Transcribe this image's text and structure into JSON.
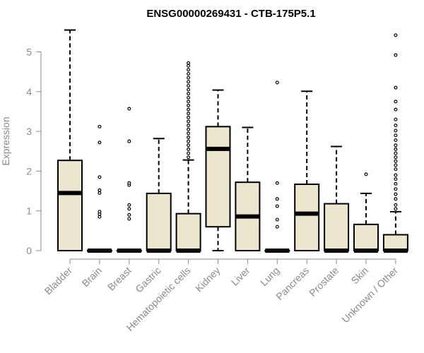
{
  "chart_data": {
    "type": "boxplot",
    "title": "ENSG00000269431 - CTB-175P5.1",
    "xlabel": "",
    "ylabel": "Expression",
    "ylim": [
      0,
      5.6
    ],
    "yticks": [
      0,
      1,
      2,
      3,
      4,
      5
    ],
    "ytick_labels": [
      "0",
      "1",
      "2",
      "3",
      "4",
      "5"
    ],
    "grid": false,
    "colors": {
      "box_fill": "#ede6cf",
      "stroke": "#000000",
      "axis": "#8a8a8a"
    },
    "categories": [
      "Bladder",
      "Brain",
      "Breast",
      "Gastric",
      "Hematopoietic cells",
      "Kidney",
      "Liver",
      "Lung",
      "Pancreas",
      "Prostate",
      "Skin",
      "Unknown / Other"
    ],
    "boxes": [
      {
        "name": "Bladder",
        "min": 0,
        "q1": 0,
        "median": 1.45,
        "q3": 2.27,
        "max": 5.55,
        "outliers": []
      },
      {
        "name": "Brain",
        "min": 0,
        "q1": 0,
        "median": 0,
        "q3": 0,
        "max": 0,
        "outliers": [
          0.85,
          0.92,
          0.98,
          1.45,
          1.52,
          1.85,
          2.72,
          3.12
        ]
      },
      {
        "name": "Breast",
        "min": 0,
        "q1": 0,
        "median": 0,
        "q3": 0,
        "max": 0,
        "outliers": [
          0.8,
          0.9,
          1.05,
          1.15,
          1.65,
          1.7,
          2.75,
          3.57
        ]
      },
      {
        "name": "Gastric",
        "min": 0,
        "q1": 0,
        "median": 0,
        "q3": 1.44,
        "max": 2.82,
        "outliers": []
      },
      {
        "name": "Hematopoietic cells",
        "min": 0,
        "q1": 0,
        "median": 0,
        "q3": 0.93,
        "max": 2.28,
        "outliers": [
          2.35,
          2.45,
          2.55,
          2.65,
          2.75,
          2.85,
          2.95,
          3.05,
          3.15,
          3.25,
          3.35,
          3.45,
          3.55,
          3.65,
          3.75,
          3.85,
          3.95,
          4.05,
          4.15,
          4.25,
          4.35,
          4.45,
          4.55,
          4.65,
          4.72
        ]
      },
      {
        "name": "Kidney",
        "min": 0,
        "q1": 0.6,
        "median": 2.56,
        "q3": 3.12,
        "max": 4.04,
        "outliers": []
      },
      {
        "name": "Liver",
        "min": 0,
        "q1": 0,
        "median": 0.86,
        "q3": 1.72,
        "max": 3.1,
        "outliers": []
      },
      {
        "name": "Lung",
        "min": 0,
        "q1": 0,
        "median": 0,
        "q3": 0,
        "max": 0,
        "outliers": [
          0.6,
          0.78,
          1.12,
          1.3,
          1.7,
          4.23
        ]
      },
      {
        "name": "Pancreas",
        "min": 0,
        "q1": 0,
        "median": 0.93,
        "q3": 1.67,
        "max": 4.01,
        "outliers": []
      },
      {
        "name": "Prostate",
        "min": 0,
        "q1": 0,
        "median": 0,
        "q3": 1.18,
        "max": 2.62,
        "outliers": []
      },
      {
        "name": "Skin",
        "min": 0,
        "q1": 0,
        "median": 0,
        "q3": 0.66,
        "max": 1.44,
        "outliers": [
          1.92
        ]
      },
      {
        "name": "Unknown / Other",
        "min": 0,
        "q1": 0,
        "median": 0,
        "q3": 0.4,
        "max": 0.98,
        "outliers": [
          1.05,
          1.15,
          1.3,
          1.42,
          1.55,
          1.68,
          1.8,
          1.9,
          2.05,
          2.15,
          2.25,
          2.35,
          2.45,
          2.55,
          2.65,
          2.78,
          2.9,
          3.02,
          3.15,
          3.3,
          3.55,
          3.75,
          4.1,
          4.92,
          5.42
        ]
      }
    ]
  }
}
